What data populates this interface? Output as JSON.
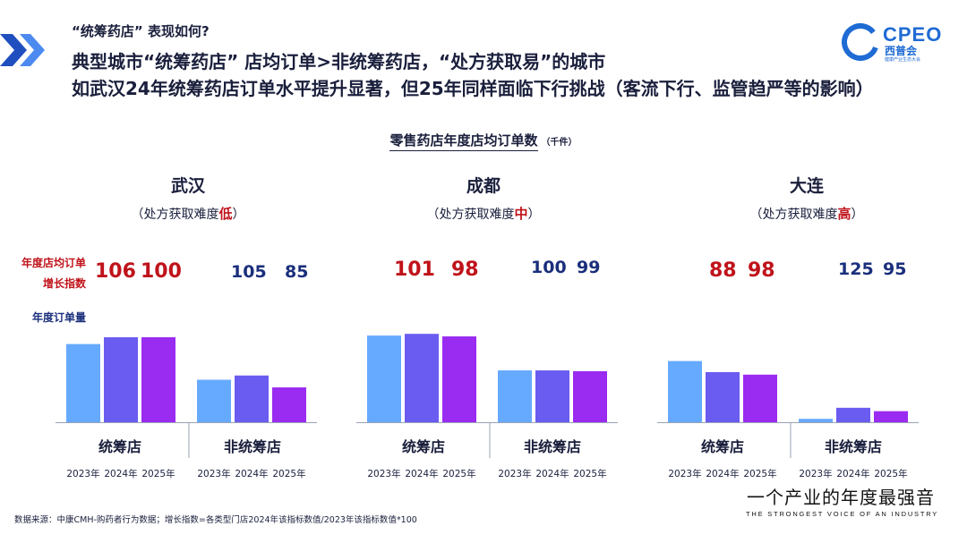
{
  "header": {
    "subtitle": "“统筹药店” 表现如何?",
    "line1": "典型城市“统筹药店” 店均订单>非统筹药店，“处方获取易”的城市",
    "line2": "如武汉24年统筹药店订单水平提升显著，但25年同样面临下行挑战（客流下行、监管趋严等的影响）"
  },
  "logo": {
    "word": "CPEO",
    "cn": "西普会",
    "tiny": "健康产业生态大会"
  },
  "chart": {
    "title": "零售药店年度店均订单数",
    "unit": "（千件）"
  },
  "row_labels": {
    "index_line1": "年度店均订单",
    "index_line2": "增长指数",
    "volume": "年度订单量"
  },
  "colors": {
    "y2023": "#66aaff",
    "y2024": "#6a5cf0",
    "y2025": "#9a2bf0",
    "red": "#c0131b",
    "navy": "#1a2f7c"
  },
  "chart_data": {
    "type": "bar",
    "series": [
      {
        "name": "2023年",
        "values": null
      },
      {
        "name": "2024年",
        "values": null
      },
      {
        "name": "2025年",
        "values": null
      }
    ],
    "cities": [
      {
        "name": "武汉",
        "difficulty_prefix": "（处方获取难度",
        "difficulty": "低",
        "difficulty_suffix": "）",
        "groups": [
          {
            "label": "统筹店",
            "index": [
              "106",
              "100"
            ],
            "index_color": "red",
            "values": [
              92,
              100,
              100
            ]
          },
          {
            "label": "非统筹店",
            "index": [
              "105",
              "85"
            ],
            "index_color": "navy",
            "values": [
              50,
              55,
              41
            ]
          }
        ]
      },
      {
        "name": "成都",
        "difficulty_prefix": "（处方获取难度",
        "difficulty": "中",
        "difficulty_suffix": "）",
        "groups": [
          {
            "label": "统筹店",
            "index": [
              "101",
              "98"
            ],
            "index_color": "red",
            "values": [
              102,
              104,
              101
            ]
          },
          {
            "label": "非统筹店",
            "index": [
              "100",
              "99"
            ],
            "index_color": "navy",
            "values": [
              61,
              61,
              60
            ]
          }
        ]
      },
      {
        "name": "大连",
        "difficulty_prefix": "（处方获取难度",
        "difficulty": "高",
        "difficulty_suffix": "）",
        "groups": [
          {
            "label": "统筹店",
            "index": [
              "88",
              "98"
            ],
            "index_color": "red",
            "values": [
              72,
              59,
              56
            ]
          },
          {
            "label": "非统筹店",
            "index": [
              "125",
              "95"
            ],
            "index_color": "navy",
            "values": [
              4,
              17,
              13
            ]
          }
        ]
      }
    ],
    "years": [
      "2023年",
      "2024年",
      "2025年"
    ],
    "ylim": [
      0,
      110
    ]
  },
  "footer": "数据来源：中康CMH-购药者行为数据；增长指数=各类型门店2024年该指标数值/2023年该指标数值*100",
  "slogan": "一个产业的年度最强音",
  "slogan_en": "THE STRONGEST VOICE OF AN INDUSTRY"
}
